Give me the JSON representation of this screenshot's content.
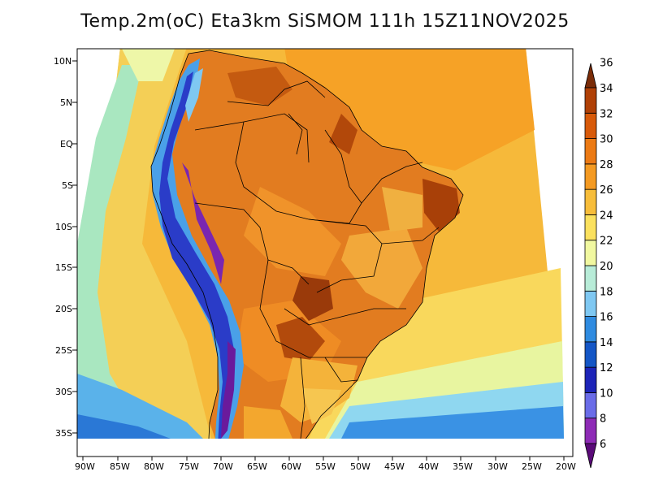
{
  "map": {
    "title": "Temp.2m(oC) Eta3km SiSMOM 111h 15Z11NOV2025",
    "lat_labels": [
      "10N",
      "5N",
      "EQ",
      "5S",
      "10S",
      "15S",
      "20S",
      "25S",
      "30S",
      "35S"
    ],
    "lon_labels": [
      "90W",
      "85W",
      "80W",
      "75W",
      "70W",
      "65W",
      "60W",
      "55W",
      "50W",
      "45W",
      "40W",
      "35W",
      "30W",
      "25W",
      "20W"
    ],
    "colorbar": {
      "labels": [
        "6",
        "8",
        "10",
        "12",
        "14",
        "16",
        "18",
        "20",
        "22",
        "24",
        "26",
        "28",
        "30",
        "32",
        "34",
        "36"
      ],
      "colors": [
        "#5a0a78",
        "#8e2bb6",
        "#6a6ce8",
        "#1d24b8",
        "#1456c6",
        "#2f8be0",
        "#7fc8f2",
        "#b8ecd8",
        "#f1f8a0",
        "#fbe15e",
        "#f7bd3a",
        "#f49a22",
        "#ec7a14",
        "#d85a0a",
        "#b04006",
        "#7a2c08"
      ]
    }
  }
}
